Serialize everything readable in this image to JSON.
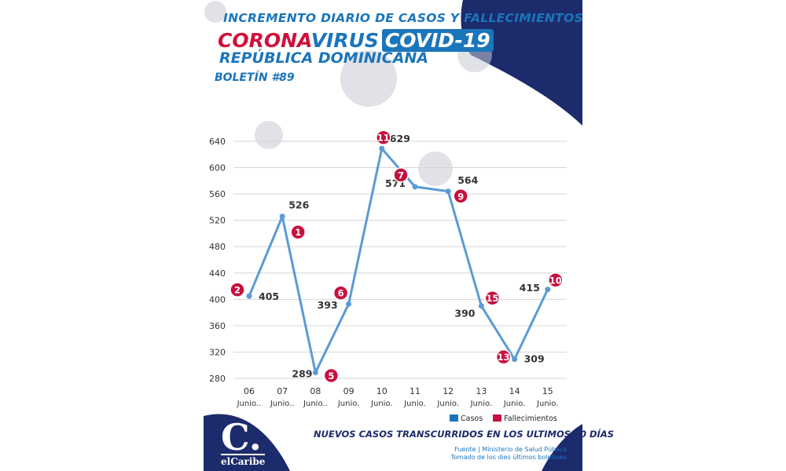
{
  "header": {
    "title_line1": "INCREMENTO DIARIO DE CASOS Y FALLECIMIENTOS",
    "corona": "CORONA",
    "virus": "VIRUS",
    "covid": "COVID-19",
    "country": "REPÚBLICA DOMINICANA",
    "bulletin": "BOLETÍN #89"
  },
  "chart_data": {
    "type": "line",
    "categories": [
      "06 Junio..",
      "07 Junio..",
      "08 Junio..",
      "09 Junio.",
      "10 Junio.",
      "11 Junio.",
      "12 Junio.",
      "13 Junio.",
      "14 Junio.",
      "15 Junio."
    ],
    "x_day": [
      "06",
      "07",
      "08",
      "09",
      "10",
      "11",
      "12",
      "13",
      "14",
      "15"
    ],
    "x_month": [
      "Junio..",
      "Junio..",
      "Junio..",
      "Junio.",
      "Junio.",
      "Junio.",
      "Junio.",
      "Junio.",
      "Junio.",
      "Junio."
    ],
    "series": [
      {
        "name": "Casos",
        "values": [
          405,
          526,
          289,
          393,
          629,
          571,
          564,
          390,
          309,
          415
        ]
      },
      {
        "name": "Fallecimientos",
        "values": [
          2,
          1,
          5,
          6,
          11,
          7,
          9,
          15,
          13,
          10
        ]
      }
    ],
    "yticks": [
      280,
      320,
      360,
      400,
      440,
      480,
      520,
      560,
      600,
      640
    ],
    "ylim": [
      280,
      640
    ],
    "grid": true,
    "colors": {
      "casos": "#5b9bd5",
      "fallecimientos": "#c8103e"
    }
  },
  "legend": {
    "casos": "Casos",
    "fallecimientos": "Fallecimientos"
  },
  "footer": {
    "headline": "NUEVOS CASOS TRANSCURRIDOS EN LOS ULTIMOS 10 DÍAS",
    "source_line1": "Fuente | Ministerio de Salud Pública",
    "source_line2": "Tomado de  los dies últimos boletines"
  },
  "logo": {
    "mark": "C.",
    "name": "elCaribe"
  }
}
